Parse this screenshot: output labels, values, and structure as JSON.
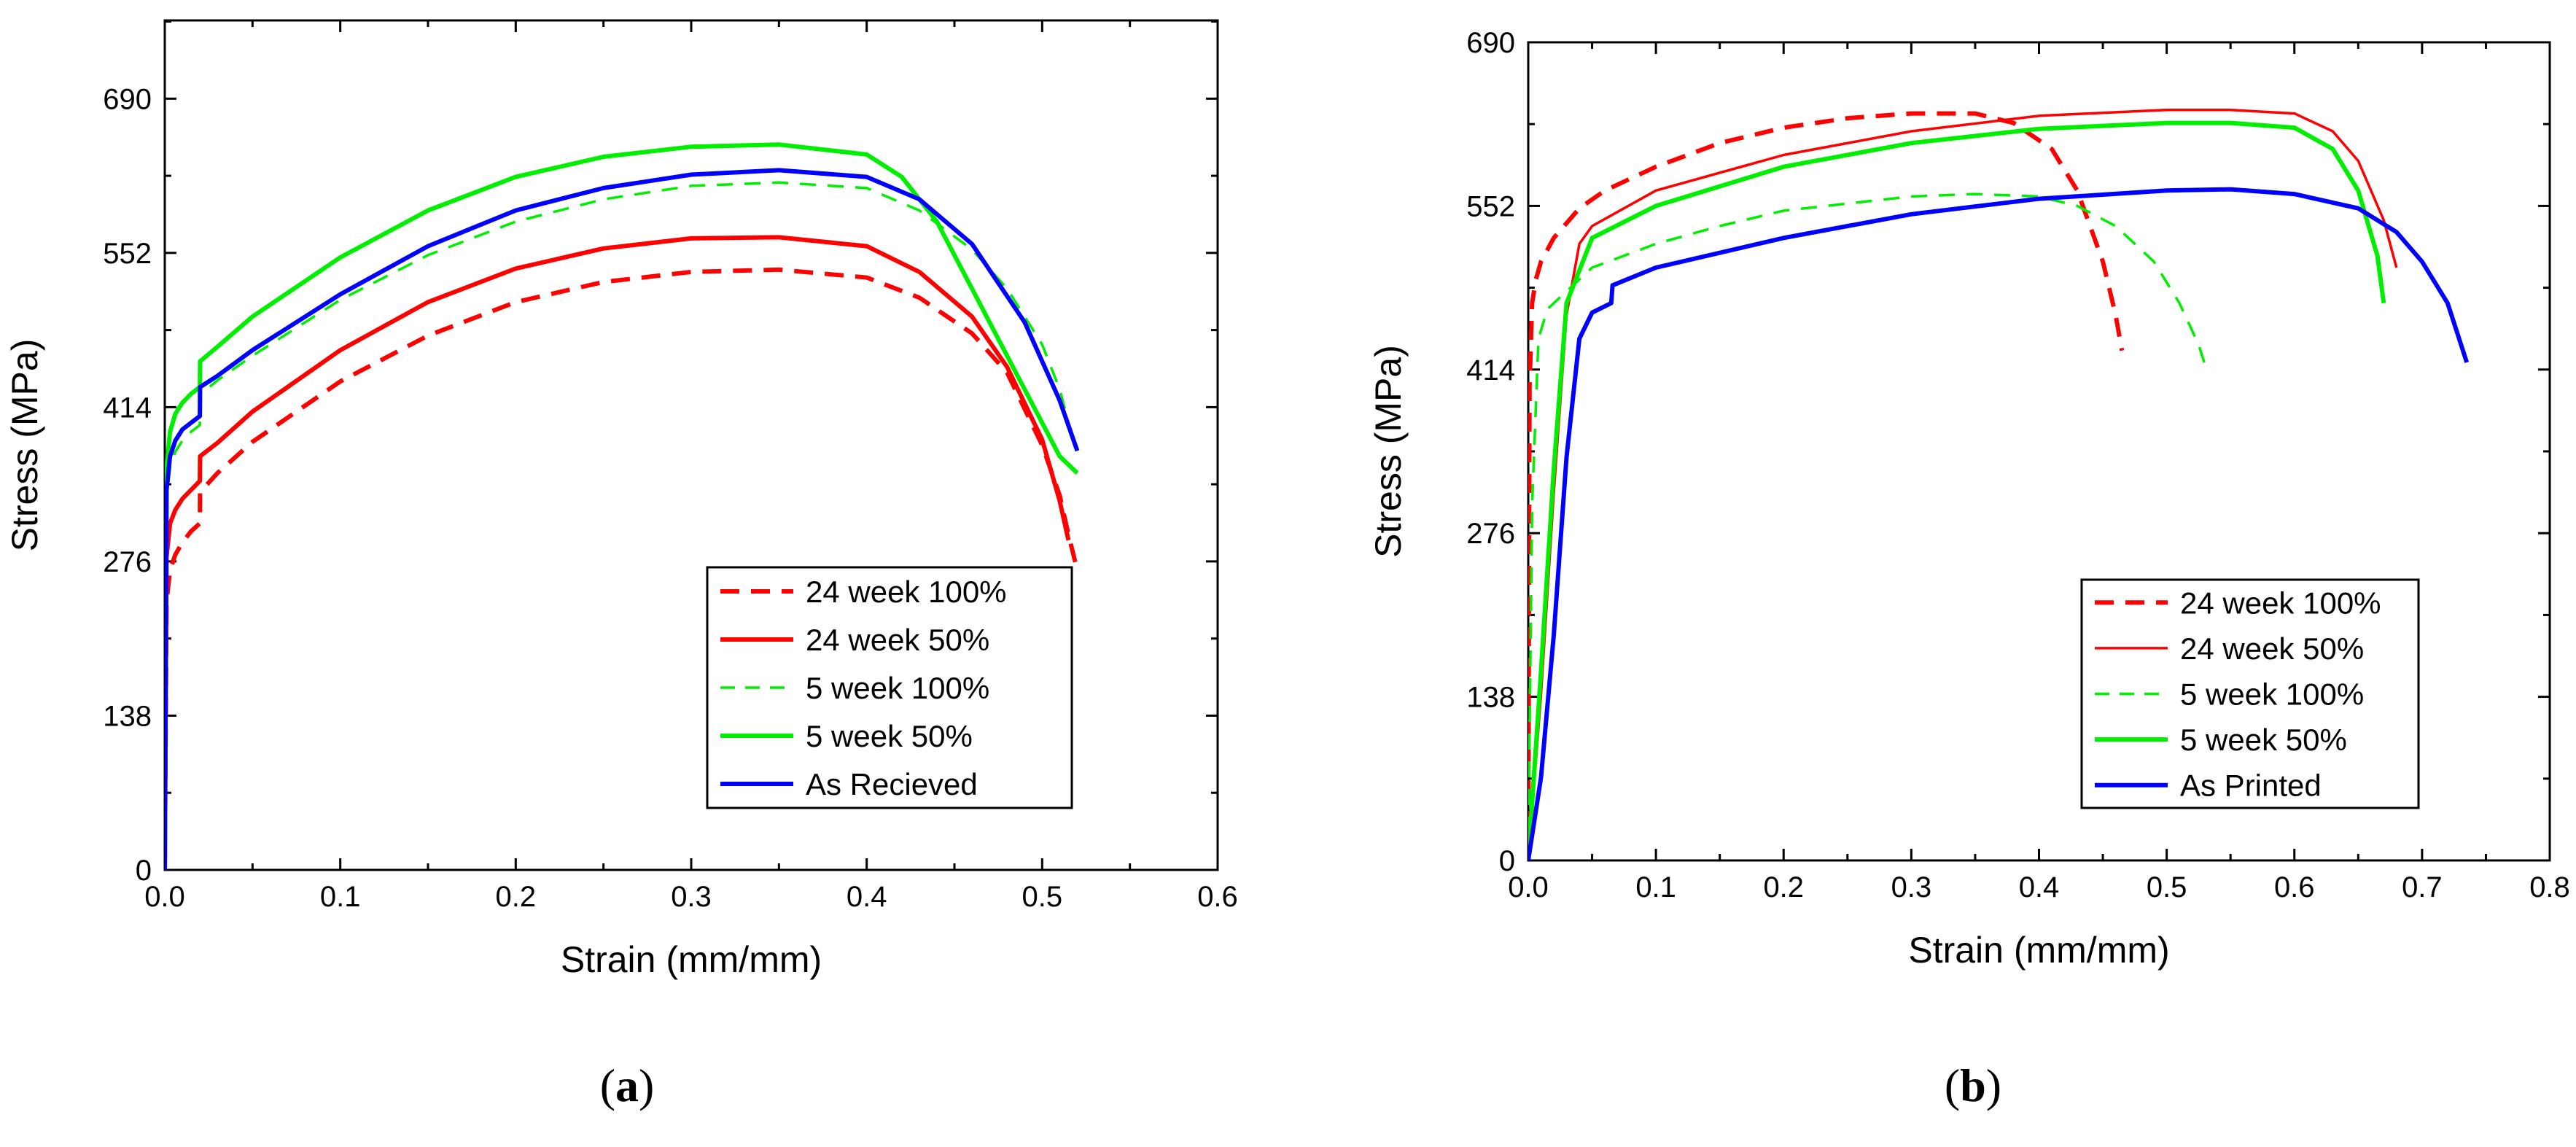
{
  "chart_data": [
    {
      "type": "line",
      "panel_label": "(a)",
      "panel_letter": "a",
      "xlabel": "Strain (mm/mm)",
      "ylabel": "Stress (MPa)",
      "xlim": [
        0,
        0.6
      ],
      "ylim": [
        0,
        760
      ],
      "xticks": [
        0.0,
        0.1,
        0.2,
        0.3,
        0.4,
        0.5,
        0.6
      ],
      "xtick_labels": [
        "0.0",
        "0.1",
        "0.2",
        "0.3",
        "0.4",
        "0.5",
        "0.6"
      ],
      "yticks": [
        0,
        138,
        276,
        414,
        552,
        690
      ],
      "ytick_labels": [
        "0",
        "138",
        "276",
        "414",
        "552",
        "690"
      ],
      "legend_position": "bottom-right",
      "series": [
        {
          "name": "24 week 100%",
          "color": "#ff0000",
          "dash": "dashed",
          "weight": "thick",
          "x": [
            0,
            0.001,
            0.003,
            0.006,
            0.01,
            0.015,
            0.02,
            0.0201,
            0.03,
            0.05,
            0.1,
            0.15,
            0.2,
            0.25,
            0.3,
            0.35,
            0.4,
            0.43,
            0.46,
            0.48,
            0.5,
            0.51,
            0.515,
            0.52
          ],
          "y": [
            0,
            240,
            268,
            282,
            293,
            303,
            310,
            338,
            355,
            383,
            437,
            478,
            508,
            526,
            535,
            537,
            530,
            512,
            480,
            445,
            380,
            335,
            300,
            268
          ]
        },
        {
          "name": "24 week 50%",
          "color": "#ff0000",
          "dash": "solid",
          "weight": "thick",
          "x": [
            0,
            0.001,
            0.003,
            0.006,
            0.01,
            0.015,
            0.02,
            0.0201,
            0.03,
            0.05,
            0.1,
            0.15,
            0.2,
            0.25,
            0.3,
            0.35,
            0.4,
            0.43,
            0.46,
            0.48,
            0.5,
            0.51,
            0.515
          ],
          "y": [
            0,
            280,
            310,
            322,
            332,
            340,
            348,
            370,
            382,
            410,
            465,
            508,
            538,
            556,
            565,
            566,
            558,
            535,
            495,
            450,
            385,
            330,
            295
          ]
        },
        {
          "name": "5 week 100%",
          "color": "#00ee00",
          "dash": "dashed",
          "weight": "thin",
          "x": [
            0,
            0.001,
            0.003,
            0.006,
            0.01,
            0.015,
            0.02,
            0.0201,
            0.03,
            0.05,
            0.1,
            0.15,
            0.2,
            0.25,
            0.3,
            0.35,
            0.4,
            0.43,
            0.46,
            0.48,
            0.5,
            0.51,
            0.515
          ],
          "y": [
            0,
            330,
            360,
            374,
            384,
            392,
            398,
            425,
            438,
            460,
            510,
            550,
            580,
            600,
            612,
            615,
            610,
            590,
            555,
            520,
            470,
            430,
            400
          ]
        },
        {
          "name": "5 week 50%",
          "color": "#00ee00",
          "dash": "solid",
          "weight": "thick",
          "x": [
            0,
            0.001,
            0.003,
            0.006,
            0.01,
            0.015,
            0.02,
            0.0201,
            0.03,
            0.05,
            0.1,
            0.15,
            0.2,
            0.25,
            0.3,
            0.35,
            0.4,
            0.42,
            0.44,
            0.46,
            0.48,
            0.5,
            0.51,
            0.52
          ],
          "y": [
            0,
            360,
            392,
            408,
            418,
            426,
            432,
            455,
            468,
            495,
            548,
            590,
            620,
            638,
            647,
            649,
            640,
            620,
            580,
            520,
            460,
            400,
            370,
            355
          ]
        },
        {
          "name": "As Recieved",
          "color": "#0000ff",
          "dash": "solid",
          "weight": "thick",
          "x": [
            0,
            0.001,
            0.003,
            0.006,
            0.01,
            0.015,
            0.02,
            0.0201,
            0.03,
            0.05,
            0.1,
            0.15,
            0.2,
            0.25,
            0.3,
            0.35,
            0.4,
            0.43,
            0.46,
            0.49,
            0.51,
            0.52
          ],
          "y": [
            0,
            340,
            370,
            384,
            394,
            400,
            406,
            432,
            442,
            465,
            515,
            558,
            590,
            610,
            622,
            626,
            620,
            600,
            560,
            490,
            420,
            375
          ]
        }
      ]
    },
    {
      "type": "line",
      "panel_label": "(b)",
      "panel_letter": "b",
      "xlabel": "Strain (mm/mm)",
      "ylabel": "Stress (MPa)",
      "xlim": [
        0,
        0.8
      ],
      "ylim": [
        0,
        690
      ],
      "xticks": [
        0.0,
        0.1,
        0.2,
        0.3,
        0.4,
        0.5,
        0.6,
        0.7,
        0.8
      ],
      "xtick_labels": [
        "0.0",
        "0.1",
        "0.2",
        "0.3",
        "0.4",
        "0.5",
        "0.6",
        "0.7",
        "0.8"
      ],
      "yticks": [
        0,
        138,
        276,
        414,
        552,
        690
      ],
      "ytick_labels": [
        "0",
        "138",
        "276",
        "414",
        "552",
        "690"
      ],
      "legend_position": "bottom-right",
      "series": [
        {
          "name": "24 week 100%",
          "color": "#ff0000",
          "dash": "dashed",
          "weight": "thick",
          "x": [
            0,
            0.001,
            0.003,
            0.006,
            0.01,
            0.02,
            0.04,
            0.06,
            0.1,
            0.15,
            0.2,
            0.25,
            0.3,
            0.35,
            0.38,
            0.41,
            0.43,
            0.45,
            0.46,
            0.465
          ],
          "y": [
            0,
            400,
            470,
            490,
            505,
            525,
            550,
            565,
            585,
            605,
            618,
            626,
            630,
            630,
            622,
            600,
            565,
            505,
            460,
            430
          ]
        },
        {
          "name": "24 week 50%",
          "color": "#ff0000",
          "dash": "solid",
          "weight": "thin",
          "x": [
            0,
            0.01,
            0.02,
            0.03,
            0.04,
            0.05,
            0.1,
            0.2,
            0.3,
            0.4,
            0.5,
            0.55,
            0.6,
            0.63,
            0.65,
            0.67,
            0.68
          ],
          "y": [
            0,
            140,
            310,
            460,
            520,
            535,
            565,
            595,
            615,
            628,
            633,
            633,
            630,
            615,
            590,
            540,
            500
          ]
        },
        {
          "name": "5 week 100%",
          "color": "#00ee00",
          "dash": "dashed",
          "weight": "thin",
          "x": [
            0,
            0.003,
            0.008,
            0.015,
            0.03,
            0.05,
            0.1,
            0.15,
            0.2,
            0.3,
            0.35,
            0.4,
            0.43,
            0.46,
            0.49,
            0.51,
            0.525,
            0.53
          ],
          "y": [
            0,
            300,
            440,
            465,
            480,
            500,
            520,
            535,
            548,
            560,
            562,
            560,
            552,
            535,
            505,
            470,
            435,
            418
          ]
        },
        {
          "name": "5 week 50%",
          "color": "#00ee00",
          "dash": "solid",
          "weight": "thick",
          "x": [
            0,
            0.01,
            0.02,
            0.03,
            0.05,
            0.1,
            0.2,
            0.3,
            0.4,
            0.5,
            0.55,
            0.6,
            0.63,
            0.65,
            0.665,
            0.67
          ],
          "y": [
            0,
            160,
            330,
            470,
            525,
            552,
            585,
            605,
            617,
            622,
            622,
            618,
            600,
            565,
            510,
            470
          ]
        },
        {
          "name": "As Printed",
          "color": "#0000ff",
          "dash": "solid",
          "weight": "thick",
          "x": [
            0,
            0.01,
            0.02,
            0.03,
            0.04,
            0.05,
            0.065,
            0.066,
            0.1,
            0.2,
            0.3,
            0.4,
            0.5,
            0.55,
            0.6,
            0.65,
            0.68,
            0.7,
            0.72,
            0.735
          ],
          "y": [
            0,
            70,
            190,
            340,
            440,
            462,
            470,
            485,
            500,
            525,
            545,
            558,
            565,
            566,
            562,
            550,
            530,
            505,
            470,
            420
          ]
        }
      ]
    }
  ]
}
